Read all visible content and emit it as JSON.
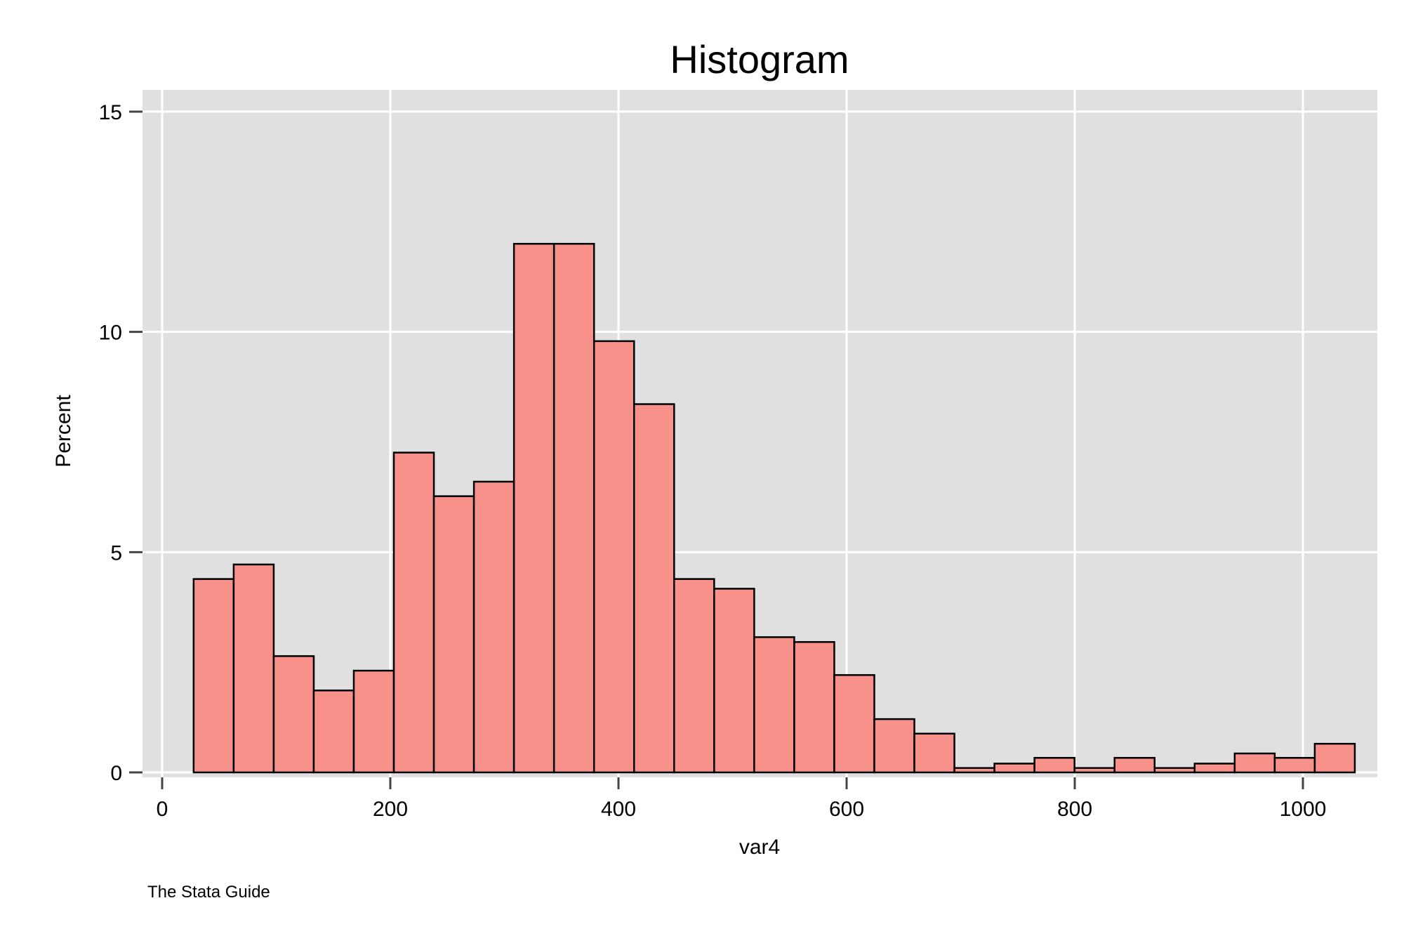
{
  "chart_data": {
    "type": "bar",
    "subtype": "histogram",
    "title": "Histogram",
    "xlabel": "var4",
    "ylabel": "Percent",
    "note": "The Stata Guide",
    "xlim": [
      0,
      1050
    ],
    "ylim": [
      0,
      15
    ],
    "xticks": [
      0,
      200,
      400,
      600,
      800,
      1000
    ],
    "yticks": [
      0,
      5,
      10,
      15
    ],
    "grid": true,
    "bin_start": 27.6,
    "bin_width": 35.1,
    "values": [
      4.39,
      4.72,
      2.64,
      1.86,
      2.31,
      7.26,
      6.27,
      6.6,
      12.0,
      12.0,
      9.79,
      8.36,
      4.39,
      4.17,
      3.07,
      2.96,
      2.21,
      1.21,
      0.88,
      0.1,
      0.2,
      0.33,
      0.1,
      0.33,
      0.1,
      0.2,
      0.43,
      0.33,
      0.65
    ],
    "colors": {
      "bar_fill": "#f8918a",
      "bar_stroke": "#000000",
      "plot_bg": "#e0e0e0",
      "grid": "#ffffff"
    }
  }
}
